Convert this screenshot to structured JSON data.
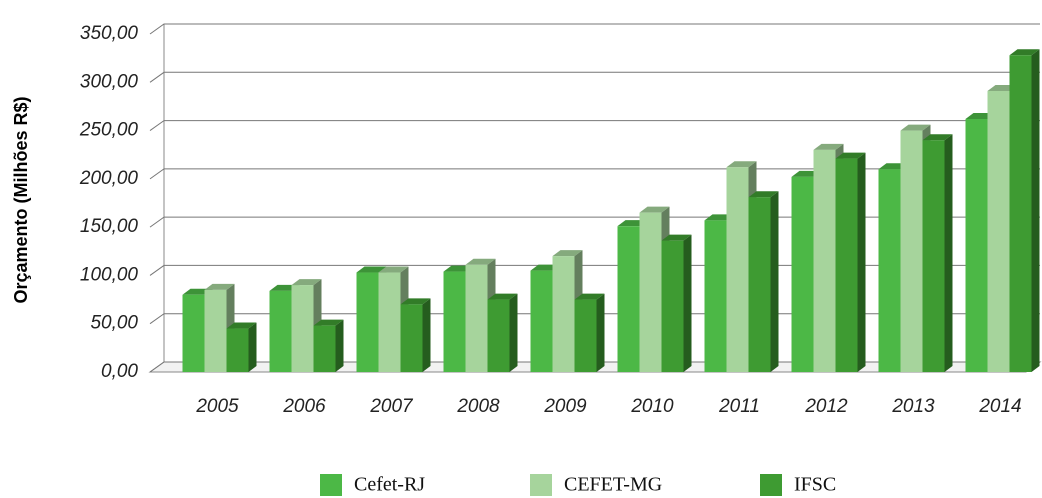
{
  "chart_data": {
    "type": "bar3d",
    "ylabel": "Orçamento (Milhões R$)",
    "categories": [
      "2005",
      "2006",
      "2007",
      "2008",
      "2009",
      "2010",
      "2011",
      "2012",
      "2013",
      "2014"
    ],
    "series": [
      {
        "name": "Cefet-RJ",
        "color": "#4cb846",
        "values": [
          80,
          84,
          103,
          104,
          105,
          151,
          157,
          202,
          210,
          262
        ]
      },
      {
        "name": "CEFET-MG",
        "color": "#a6d49c",
        "values": [
          85,
          90,
          103,
          111,
          120,
          165,
          212,
          230,
          250,
          291
        ]
      },
      {
        "name": "IFSC",
        "color": "#3e9b32",
        "values": [
          45,
          48,
          70,
          75,
          75,
          136,
          181,
          221,
          240,
          328
        ]
      }
    ],
    "ylim": [
      0,
      350
    ],
    "yticks": [
      {
        "value": 0,
        "label": "0,00"
      },
      {
        "value": 50,
        "label": "50,00"
      },
      {
        "value": 100,
        "label": "100,00"
      },
      {
        "value": 150,
        "label": "150,00"
      },
      {
        "value": 200,
        "label": "200,00"
      },
      {
        "value": 250,
        "label": "250,00"
      },
      {
        "value": 300,
        "label": "300,00"
      },
      {
        "value": 350,
        "label": "350,00"
      }
    ],
    "grid": true,
    "legend": "bottom"
  }
}
